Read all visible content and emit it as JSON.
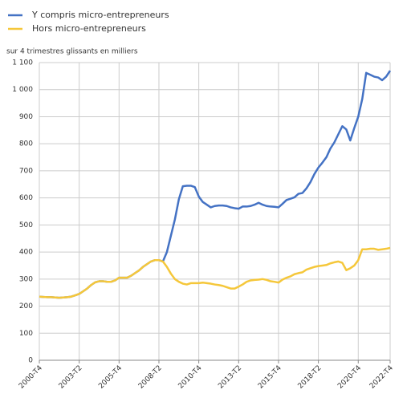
{
  "chart_data": {
    "type": "line",
    "ylabel": "sur 4 trimestres glissants en milliers",
    "categories": [
      "2000-T4",
      null,
      null,
      null,
      null,
      null,
      null,
      null,
      null,
      null,
      "2003-T2",
      null,
      null,
      null,
      null,
      null,
      null,
      null,
      null,
      null,
      "2005-T4",
      null,
      null,
      null,
      null,
      null,
      null,
      null,
      null,
      null,
      "2008-T2",
      null,
      null,
      null,
      null,
      null,
      null,
      null,
      null,
      null,
      "2010-T4",
      null,
      null,
      null,
      null,
      null,
      null,
      null,
      null,
      null,
      "2013-T2",
      null,
      null,
      null,
      null,
      null,
      null,
      null,
      null,
      null,
      "2015-T4",
      null,
      null,
      null,
      null,
      null,
      null,
      null,
      null,
      null,
      "2018-T2",
      null,
      null,
      null,
      null,
      null,
      null,
      null,
      null,
      null,
      "2020-T4",
      null,
      null,
      null,
      null,
      null,
      null,
      null,
      "2022-T4"
    ],
    "series": [
      {
        "name": "Y compris micro-entrepreneurs",
        "color": "#4472c4",
        "values": [
          235,
          234,
          233,
          233,
          232,
          231,
          232,
          233,
          235,
          240,
          245,
          255,
          265,
          278,
          288,
          292,
          292,
          290,
          290,
          295,
          305,
          305,
          305,
          312,
          322,
          332,
          345,
          355,
          365,
          370,
          370,
          365,
          400,
          460,
          520,
          595,
          643,
          645,
          645,
          640,
          605,
          585,
          575,
          565,
          570,
          572,
          572,
          570,
          565,
          562,
          560,
          568,
          568,
          570,
          575,
          582,
          575,
          570,
          568,
          567,
          565,
          578,
          592,
          597,
          602,
          615,
          618,
          635,
          658,
          688,
          712,
          730,
          750,
          782,
          805,
          835,
          865,
          853,
          812,
          858,
          900,
          965,
          1062,
          1055,
          1048,
          1045,
          1035,
          1048,
          1070
        ]
      },
      {
        "name": "Hors micro-entrepreneurs",
        "color": "#f5c73a",
        "values": [
          235,
          234,
          233,
          233,
          232,
          231,
          232,
          233,
          235,
          240,
          245,
          255,
          265,
          278,
          288,
          292,
          292,
          290,
          290,
          295,
          305,
          305,
          305,
          312,
          322,
          332,
          345,
          355,
          365,
          370,
          370,
          365,
          345,
          320,
          300,
          290,
          283,
          280,
          285,
          285,
          285,
          287,
          285,
          283,
          280,
          278,
          275,
          270,
          265,
          265,
          272,
          280,
          290,
          295,
          297,
          298,
          300,
          297,
          292,
          290,
          287,
          298,
          305,
          310,
          318,
          322,
          325,
          335,
          340,
          345,
          348,
          350,
          352,
          358,
          362,
          365,
          360,
          333,
          340,
          350,
          370,
          410,
          410,
          412,
          412,
          408,
          410,
          412,
          415
        ]
      }
    ],
    "ylim": [
      0,
      1100
    ],
    "yticks": [
      0,
      100,
      200,
      300,
      400,
      500,
      600,
      700,
      800,
      900,
      {
        "value": 1000,
        "label": "1 000"
      },
      {
        "value": 1100,
        "label": "1 100"
      }
    ],
    "grid": true,
    "legend": "top-left"
  }
}
